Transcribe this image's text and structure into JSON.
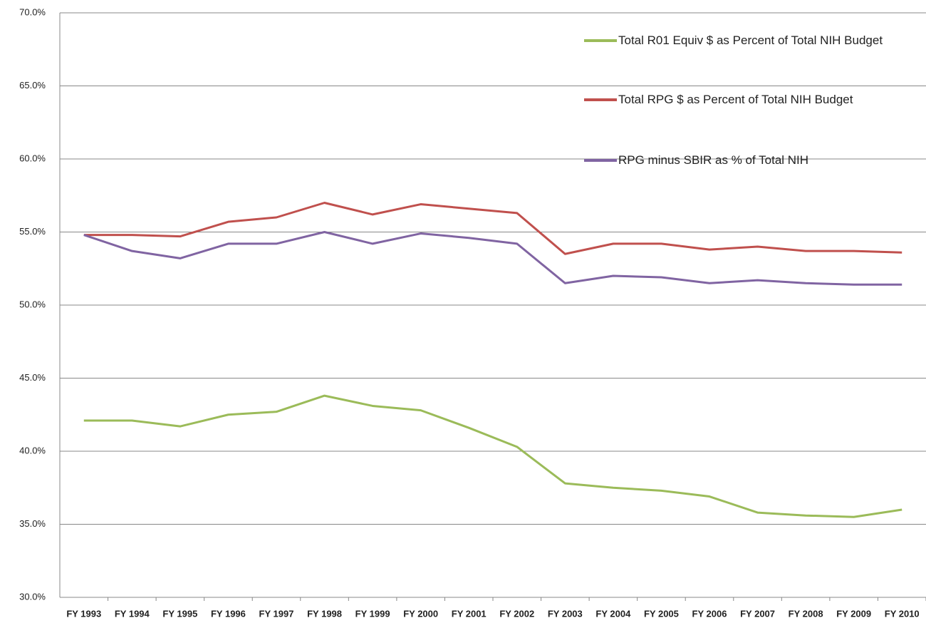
{
  "chart_data": {
    "type": "line",
    "categories": [
      "FY 1993",
      "FY 1994",
      "FY 1995",
      "FY 1996",
      "FY 1997",
      "FY 1998",
      "FY 1999",
      "FY 2000",
      "FY 2001",
      "FY 2002",
      "FY 2003",
      "FY 2004",
      "FY 2005",
      "FY 2006",
      "FY 2007",
      "FY 2008",
      "FY 2009",
      "FY 2010"
    ],
    "series": [
      {
        "name": "Total R01 Equiv $ as Percent of Total NIH Budget",
        "color": "#9bbb59",
        "values": [
          42.1,
          42.1,
          41.7,
          42.5,
          42.7,
          43.8,
          43.1,
          42.8,
          41.6,
          40.3,
          37.8,
          37.5,
          37.3,
          36.9,
          35.8,
          35.6,
          35.5,
          36.0
        ]
      },
      {
        "name": "Total RPG $ as Percent of Total NIH Budget",
        "color": "#c0504d",
        "values": [
          54.8,
          54.8,
          54.7,
          55.7,
          56.0,
          57.0,
          56.2,
          56.9,
          56.6,
          56.3,
          53.5,
          54.2,
          54.2,
          53.8,
          54.0,
          53.7,
          53.7,
          53.6
        ]
      },
      {
        "name": "RPG minus SBIR as % of Total NIH",
        "color": "#8064a2",
        "values": [
          54.8,
          53.7,
          53.2,
          54.2,
          54.2,
          55.0,
          54.2,
          54.9,
          54.6,
          54.2,
          51.5,
          52.0,
          51.9,
          51.5,
          51.7,
          51.5,
          51.4,
          51.4
        ]
      }
    ],
    "ylim": [
      30,
      70
    ],
    "yticks": [
      {
        "value": 30,
        "label": "30.0%"
      },
      {
        "value": 35,
        "label": "35.0%"
      },
      {
        "value": 40,
        "label": "40.0%"
      },
      {
        "value": 45,
        "label": "45.0%"
      },
      {
        "value": 50,
        "label": "50.0%"
      },
      {
        "value": 55,
        "label": "55.0%"
      },
      {
        "value": 60,
        "label": "60.0%"
      },
      {
        "value": 65,
        "label": "65.0%"
      },
      {
        "value": 70,
        "label": "70.0%"
      }
    ],
    "grid": true,
    "legend": "top-right"
  }
}
